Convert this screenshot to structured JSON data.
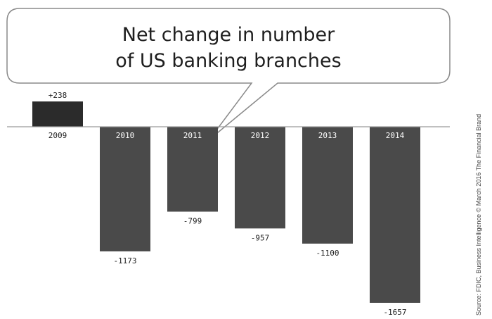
{
  "chart_data": {
    "type": "bar",
    "title_lines": [
      "Net change in number",
      "of US banking branches"
    ],
    "categories": [
      "2009",
      "2010",
      "2011",
      "2012",
      "2013",
      "2014"
    ],
    "values": [
      238,
      -1173,
      -799,
      -957,
      -1100,
      -1657
    ],
    "value_labels": [
      "+238",
      "-1173",
      "-799",
      "-957",
      "-1100",
      "-1657"
    ],
    "xlabel": "",
    "ylabel": "",
    "ylim": [
      -1800,
      300
    ],
    "grid": false,
    "colors": {
      "positive": "#2b2b2b",
      "negative": "#4a4a4a",
      "baseline": "#9a9a9a"
    }
  },
  "source": "Source: FDIC, Business Intelligence © March 2016 The Financial Brand"
}
